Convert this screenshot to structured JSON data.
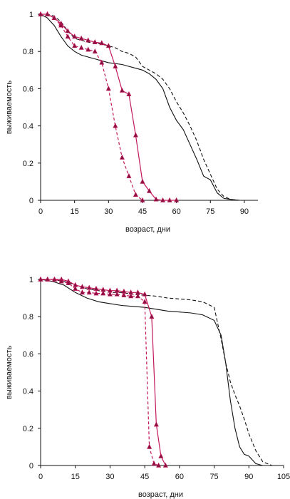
{
  "colors": {
    "black_line": "#111111",
    "magenta": "#c2185b",
    "marker_fill": "#8a1240"
  },
  "chart_data": [
    {
      "type": "line",
      "ylabel": "выживаемость",
      "xlabel": "возраст, дни",
      "xlim": [
        0,
        96
      ],
      "ylim": [
        0,
        1
      ],
      "xticks": [
        0,
        15,
        30,
        45,
        60,
        75,
        90
      ],
      "yticks": [
        0,
        0.2,
        0.4,
        0.6,
        0.8,
        1
      ],
      "ytick_labels": [
        "0",
        "0.2",
        "0.4",
        "0.6",
        "0.8",
        "1"
      ],
      "series": [
        {
          "style": "black-solid",
          "marker": false,
          "x": [
            0,
            3,
            6,
            9,
            12,
            15,
            18,
            21,
            24,
            27,
            30,
            33,
            36,
            39,
            42,
            45,
            48,
            51,
            54,
            57,
            60,
            63,
            66,
            69,
            72,
            75,
            78,
            81,
            84,
            88
          ],
          "y": [
            1,
            0.98,
            0.94,
            0.88,
            0.83,
            0.8,
            0.78,
            0.77,
            0.76,
            0.75,
            0.74,
            0.735,
            0.73,
            0.72,
            0.71,
            0.7,
            0.68,
            0.65,
            0.6,
            0.5,
            0.43,
            0.38,
            0.3,
            0.22,
            0.13,
            0.11,
            0.04,
            0.01,
            0.005,
            0
          ]
        },
        {
          "style": "black-dashed",
          "marker": false,
          "x": [
            0,
            3,
            6,
            9,
            12,
            15,
            18,
            21,
            24,
            27,
            30,
            33,
            36,
            39,
            42,
            45,
            48,
            51,
            54,
            57,
            60,
            63,
            66,
            69,
            72,
            75,
            78,
            81,
            84,
            88
          ],
          "y": [
            1,
            1,
            0.99,
            0.96,
            0.91,
            0.87,
            0.86,
            0.85,
            0.845,
            0.84,
            0.83,
            0.82,
            0.8,
            0.79,
            0.77,
            0.72,
            0.7,
            0.68,
            0.65,
            0.6,
            0.53,
            0.47,
            0.4,
            0.32,
            0.22,
            0.14,
            0.06,
            0.02,
            0.005,
            0
          ]
        },
        {
          "style": "magenta-solid",
          "marker": true,
          "x": [
            0,
            3,
            6,
            9,
            12,
            15,
            18,
            21,
            24,
            27,
            30,
            33,
            36,
            39,
            42,
            45,
            48,
            51,
            54,
            57,
            60
          ],
          "y": [
            1,
            1,
            0.98,
            0.95,
            0.91,
            0.88,
            0.87,
            0.86,
            0.85,
            0.845,
            0.83,
            0.72,
            0.59,
            0.57,
            0.35,
            0.1,
            0.05,
            0.005,
            0,
            0,
            0
          ]
        },
        {
          "style": "magenta-dashed",
          "marker": true,
          "x": [
            0,
            3,
            6,
            9,
            12,
            15,
            18,
            21,
            24,
            27,
            30,
            33,
            36,
            39,
            42,
            45
          ],
          "y": [
            1,
            1,
            0.98,
            0.94,
            0.88,
            0.83,
            0.82,
            0.81,
            0.8,
            0.74,
            0.6,
            0.4,
            0.23,
            0.13,
            0.03,
            0
          ]
        }
      ]
    },
    {
      "type": "line",
      "ylabel": "выживаемость",
      "xlabel": "возраст, дни",
      "xlim": [
        0,
        105
      ],
      "ylim": [
        0,
        1
      ],
      "xticks": [
        0,
        15,
        30,
        45,
        60,
        75,
        90,
        105
      ],
      "yticks": [
        0,
        0.2,
        0.4,
        0.6,
        0.8,
        1
      ],
      "ytick_labels": [
        "0",
        "0.2",
        "0.4",
        "0.6",
        "0.8",
        "1"
      ],
      "series": [
        {
          "style": "black-solid",
          "marker": false,
          "x": [
            0,
            5,
            10,
            15,
            20,
            25,
            30,
            35,
            40,
            45,
            50,
            55,
            60,
            65,
            70,
            75,
            78,
            80,
            82,
            84,
            86,
            88,
            90,
            93,
            96
          ],
          "y": [
            1,
            0.99,
            0.97,
            0.93,
            0.9,
            0.88,
            0.87,
            0.86,
            0.855,
            0.85,
            0.84,
            0.83,
            0.825,
            0.82,
            0.81,
            0.78,
            0.7,
            0.55,
            0.35,
            0.2,
            0.1,
            0.06,
            0.05,
            0.01,
            0
          ]
        },
        {
          "style": "black-dashed",
          "marker": false,
          "x": [
            0,
            5,
            10,
            15,
            20,
            25,
            30,
            35,
            40,
            45,
            50,
            55,
            60,
            65,
            70,
            75,
            78,
            80,
            82,
            84,
            86,
            88,
            90,
            93,
            96,
            100
          ],
          "y": [
            1,
            1,
            0.99,
            0.97,
            0.95,
            0.94,
            0.93,
            0.93,
            0.92,
            0.915,
            0.91,
            0.9,
            0.895,
            0.89,
            0.88,
            0.85,
            0.68,
            0.55,
            0.45,
            0.38,
            0.32,
            0.25,
            0.17,
            0.08,
            0.02,
            0
          ]
        },
        {
          "style": "magenta-solid",
          "marker": true,
          "x": [
            0,
            3,
            6,
            9,
            12,
            15,
            18,
            21,
            24,
            27,
            30,
            33,
            36,
            39,
            42,
            45,
            48,
            50,
            52,
            54
          ],
          "y": [
            1,
            1,
            1,
            1,
            0.99,
            0.97,
            0.96,
            0.955,
            0.95,
            0.945,
            0.94,
            0.94,
            0.935,
            0.93,
            0.93,
            0.92,
            0.8,
            0.22,
            0.05,
            0
          ]
        },
        {
          "style": "magenta-dashed",
          "marker": true,
          "x": [
            0,
            3,
            6,
            9,
            12,
            15,
            18,
            21,
            24,
            27,
            30,
            33,
            36,
            39,
            42,
            45,
            47,
            49,
            51
          ],
          "y": [
            1,
            1,
            1,
            0.99,
            0.98,
            0.95,
            0.93,
            0.93,
            0.925,
            0.925,
            0.92,
            0.92,
            0.915,
            0.91,
            0.91,
            0.88,
            0.1,
            0.01,
            0
          ]
        }
      ]
    }
  ]
}
